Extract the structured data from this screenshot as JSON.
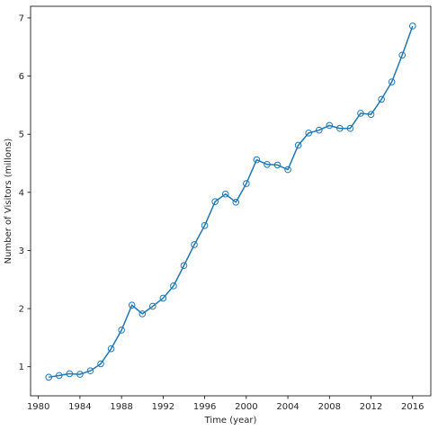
{
  "chart_data": {
    "type": "line",
    "title": "",
    "xlabel": "Time (year)",
    "ylabel": "Number of Visitors (millons)",
    "xlim": [
      1979.25,
      2017.75
    ],
    "ylim": [
      0.5,
      7.2
    ],
    "xticks": [
      1980,
      1984,
      1988,
      1992,
      1996,
      2000,
      2004,
      2008,
      2012,
      2016
    ],
    "yticks": [
      1,
      2,
      3,
      4,
      5,
      6,
      7
    ],
    "grid": false,
    "legend": "none",
    "series": [
      {
        "color": "#1f77b4",
        "marker": "open-circle",
        "x": [
          1981,
          1982,
          1983,
          1984,
          1985,
          1986,
          1987,
          1988,
          1989,
          1990,
          1991,
          1992,
          1993,
          1994,
          1995,
          1996,
          1997,
          1998,
          1999,
          2000,
          2001,
          2002,
          2003,
          2004,
          2005,
          2006,
          2007,
          2008,
          2009,
          2010,
          2011,
          2012,
          2013,
          2014,
          2015,
          2016
        ],
        "y": [
          0.82,
          0.85,
          0.88,
          0.87,
          0.93,
          1.05,
          1.31,
          1.63,
          2.06,
          1.91,
          2.04,
          2.18,
          2.39,
          2.74,
          3.1,
          3.43,
          3.84,
          3.97,
          3.83,
          4.15,
          4.56,
          4.48,
          4.47,
          4.39,
          4.81,
          5.02,
          5.07,
          5.15,
          5.1,
          5.1,
          5.36,
          5.34,
          5.6,
          5.9,
          6.36,
          6.86
        ]
      }
    ]
  }
}
